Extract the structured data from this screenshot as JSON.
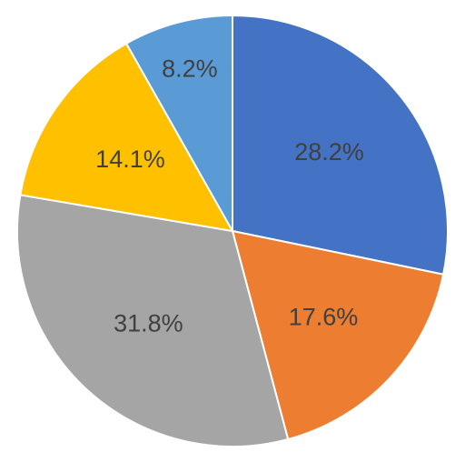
{
  "chart_data": {
    "type": "pie",
    "title": "",
    "slices": [
      {
        "value": 28.2,
        "label": "28.2%",
        "color": "#4472C4"
      },
      {
        "value": 17.6,
        "label": "17.6%",
        "color": "#ED7D31"
      },
      {
        "value": 31.8,
        "label": "31.8%",
        "color": "#A5A5A5"
      },
      {
        "value": 14.1,
        "label": "14.1%",
        "color": "#FFC000"
      },
      {
        "value": 8.2,
        "label": "8.2%",
        "color": "#5B9BD5"
      }
    ],
    "start_angle": "12 o'clock",
    "direction": "clockwise",
    "legend": "none",
    "slice_border_color": "#FFFFFF"
  }
}
